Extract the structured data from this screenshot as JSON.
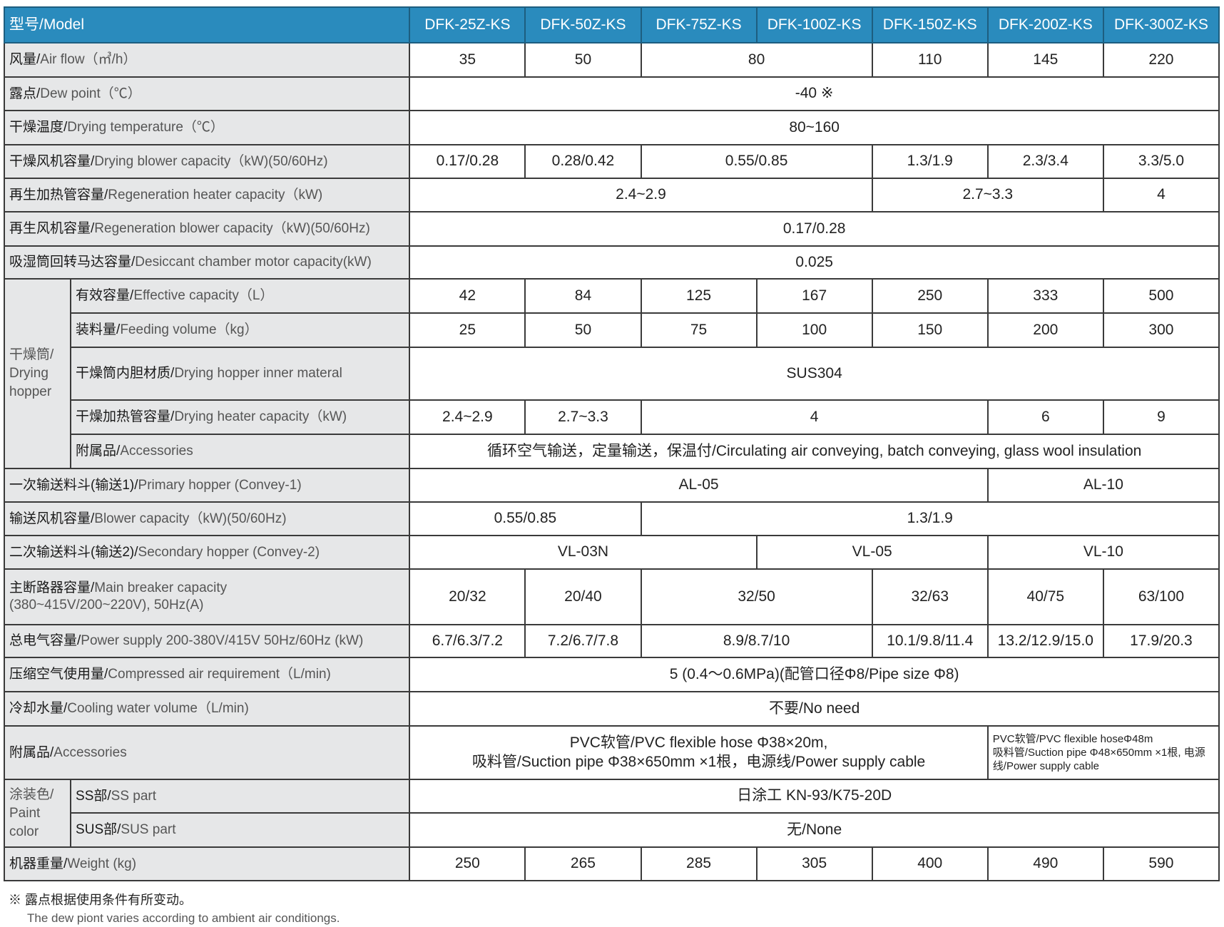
{
  "header": {
    "label": "型号/Model",
    "models": [
      "DFK-25Z-KS",
      "DFK-50Z-KS",
      "DFK-75Z-KS",
      "DFK-100Z-KS",
      "DFK-150Z-KS",
      "DFK-200Z-KS",
      "DFK-300Z-KS"
    ]
  },
  "colors": {
    "header_bg": "#2a8bbd",
    "label_bg": "#e6e7e8"
  },
  "rows": [
    {
      "zh": "风量/",
      "en": "Air flow（㎥/h）",
      "h": 48,
      "cells": [
        [
          "35",
          1
        ],
        [
          "50",
          1
        ],
        [
          "80",
          2
        ],
        [
          "110",
          1
        ],
        [
          "145",
          1
        ],
        [
          "220",
          1
        ]
      ]
    },
    {
      "zh": "露点/",
      "en": "Dew point（℃）",
      "h": 47,
      "cells": [
        [
          "-40 ※",
          7
        ]
      ]
    },
    {
      "zh": "干燥温度/",
      "en": "Drying temperature（℃）",
      "h": 48,
      "cells": [
        [
          "80~160",
          7
        ]
      ]
    },
    {
      "zh": "干燥风机容量/",
      "en": "Drying blower capacity（kW)(50/60Hz)",
      "h": 47,
      "cells": [
        [
          "0.17/0.28",
          1
        ],
        [
          "0.28/0.42",
          1
        ],
        [
          "0.55/0.85",
          2
        ],
        [
          "1.3/1.9",
          1
        ],
        [
          "2.3/3.4",
          1
        ],
        [
          "3.3/5.0",
          1
        ]
      ]
    },
    {
      "zh": "再生加热管容量/",
      "en": "Regeneration heater capacity（kW)",
      "h": 47,
      "cells": [
        [
          "2.4~2.9",
          4
        ],
        [
          "2.7~3.3",
          2
        ],
        [
          "4",
          1
        ]
      ]
    },
    {
      "zh": "再生风机容量/",
      "en": "Regeneration blower capacity（kW)(50/60Hz)",
      "h": 48,
      "cells": [
        [
          "0.17/0.28",
          7
        ]
      ]
    },
    {
      "zh": "吸湿筒回转马达容量/",
      "en": "Desiccant chamber motor capacity(kW)",
      "h": 46,
      "cells": [
        [
          "0.025",
          7
        ]
      ]
    },
    {
      "group": "干燥筒/ Drying hopper",
      "groupSpan": 5,
      "zh": "有效容量/",
      "en": "Effective capacity（L）",
      "h": 48,
      "cells": [
        [
          "42",
          1
        ],
        [
          "84",
          1
        ],
        [
          "125",
          1
        ],
        [
          "167",
          1
        ],
        [
          "250",
          1
        ],
        [
          "333",
          1
        ],
        [
          "500",
          1
        ]
      ]
    },
    {
      "zh": "装料量/",
      "en": "Feeding volume（kg）",
      "h": 48,
      "cells": [
        [
          "25",
          1
        ],
        [
          "50",
          1
        ],
        [
          "75",
          1
        ],
        [
          "100",
          1
        ],
        [
          "150",
          1
        ],
        [
          "200",
          1
        ],
        [
          "300",
          1
        ]
      ],
      "sub": true
    },
    {
      "zh": "干燥筒内胆材质/",
      "en": "Drying hopper inner materal",
      "h": 74,
      "cells": [
        [
          "SUS304",
          7
        ]
      ],
      "sub": true
    },
    {
      "zh": "干燥加热管容量/",
      "en": "Drying heater capacity（kW)",
      "h": 48,
      "cells": [
        [
          "2.4~2.9",
          1
        ],
        [
          "2.7~3.3",
          1
        ],
        [
          "4",
          3
        ],
        [
          "6",
          1
        ],
        [
          "9",
          1
        ]
      ],
      "sub": true
    },
    {
      "zh": "附属品/",
      "en": "Accessories",
      "h": 48,
      "cells": [
        [
          "循环空气输送，定量输送，保温付/Circulating air  conveying, batch conveying, glass wool insulation",
          7
        ]
      ],
      "sub": true
    },
    {
      "zh": "一次输送料斗(输送1)/",
      "en": "Primary hopper (Convey-1)",
      "h": 47,
      "cells": [
        [
          "AL-05",
          5
        ],
        [
          "AL-10",
          2
        ]
      ]
    },
    {
      "zh": "输送风机容量/",
      "en": "Blower capacity（kW)(50/60Hz)",
      "h": 47,
      "cells": [
        [
          "0.55/0.85",
          2
        ],
        [
          "1.3/1.9",
          5
        ]
      ]
    },
    {
      "zh": "二次输送料斗(输送2)/",
      "en": "Secondary hopper (Convey-2)",
      "h": 47,
      "cells": [
        [
          "VL-03N",
          3
        ],
        [
          "VL-05",
          2
        ],
        [
          "VL-10",
          2
        ]
      ]
    },
    {
      "zh": "主断路器容量/",
      "en": "Main breaker capacity",
      "en2": "(380~415V/200~220V), 50Hz(A)",
      "h": 78,
      "cells": [
        [
          "20/32",
          1
        ],
        [
          "20/40",
          1
        ],
        [
          "32/50",
          2
        ],
        [
          "32/63",
          1
        ],
        [
          "40/75",
          1
        ],
        [
          "63/100",
          1
        ]
      ]
    },
    {
      "zh": "总电气容量/",
      "en": "Power supply 200-380V/415V 50Hz/60Hz (kW)",
      "h": 46,
      "cells": [
        [
          "6.7/6.3/7.2",
          1
        ],
        [
          "7.2/6.7/7.8",
          1
        ],
        [
          "8.9/8.7/10",
          2
        ],
        [
          "10.1/9.8/11.4",
          1
        ],
        [
          "13.2/12.9/15.0",
          1
        ],
        [
          "17.9/20.3",
          1
        ]
      ]
    },
    {
      "zh": "压缩空气使用量/",
      "en": "Compressed air requirement（L/min)",
      "h": 48,
      "cells": [
        [
          "5 (0.4～0.6MPa)(配管口径Φ8/Pipe size Φ8)",
          7
        ]
      ]
    },
    {
      "zh": "冷却水量/",
      "en": "Cooling water volume（L/min)",
      "h": 48,
      "cells": [
        [
          "不要/No need",
          7
        ]
      ]
    },
    {
      "zh": "附属品/",
      "en": "Accessories",
      "h": 75,
      "cells": [
        [
          "PVC软管/PVC flexible hose Φ38×20m,\n吸料管/Suction pipe Φ38×650mm ×1根，电源线/Power supply cable",
          5
        ],
        [
          "PVC软管/PVC flexible hoseΦ48m\n吸料管/Suction pipe Φ48×650mm ×1根, 电源线/Power supply cable",
          2,
          "small"
        ]
      ]
    },
    {
      "group": "涂装色/ Paint color",
      "groupSpan": 2,
      "zh": "SS部/",
      "en": "SS part",
      "h": 47,
      "cells": [
        [
          "日涂工 KN-93/K75-20D",
          7
        ]
      ]
    },
    {
      "zh": "SUS部/",
      "en": "SUS part",
      "h": 48,
      "cells": [
        [
          "无/None",
          7
        ]
      ],
      "sub": true
    },
    {
      "zh": "机器重量/",
      "en": "Weight (kg)",
      "h": 47,
      "cells": [
        [
          "250",
          1
        ],
        [
          "265",
          1
        ],
        [
          "285",
          1
        ],
        [
          "305",
          1
        ],
        [
          "400",
          1
        ],
        [
          "490",
          1
        ],
        [
          "590",
          1
        ]
      ]
    }
  ],
  "notes": {
    "zh": "※ 露点根据使用条件有所变动。",
    "en": "The dew piont varies according to ambient air conditiongs."
  }
}
